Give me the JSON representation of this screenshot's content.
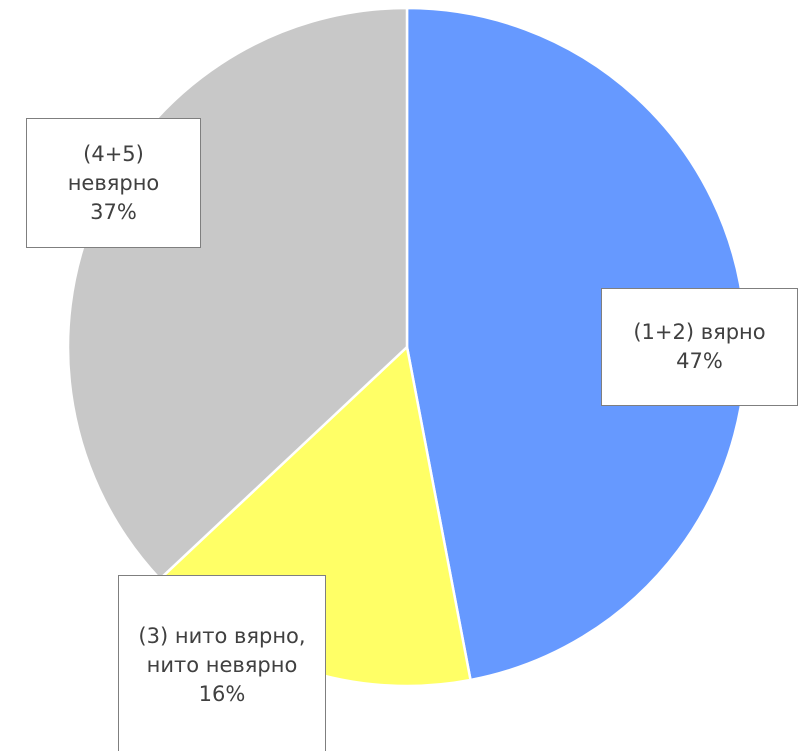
{
  "chart_data": {
    "type": "pie",
    "categories": [
      "(1+2) вярно",
      "(3) нито вярно, нито невярно",
      "(4+5) невярно"
    ],
    "values": [
      47,
      16,
      37
    ],
    "value_labels": [
      "47%",
      "16%",
      "37%"
    ],
    "colors": [
      "#6699ff",
      "#ffff66",
      "#c8c8c8"
    ]
  }
}
